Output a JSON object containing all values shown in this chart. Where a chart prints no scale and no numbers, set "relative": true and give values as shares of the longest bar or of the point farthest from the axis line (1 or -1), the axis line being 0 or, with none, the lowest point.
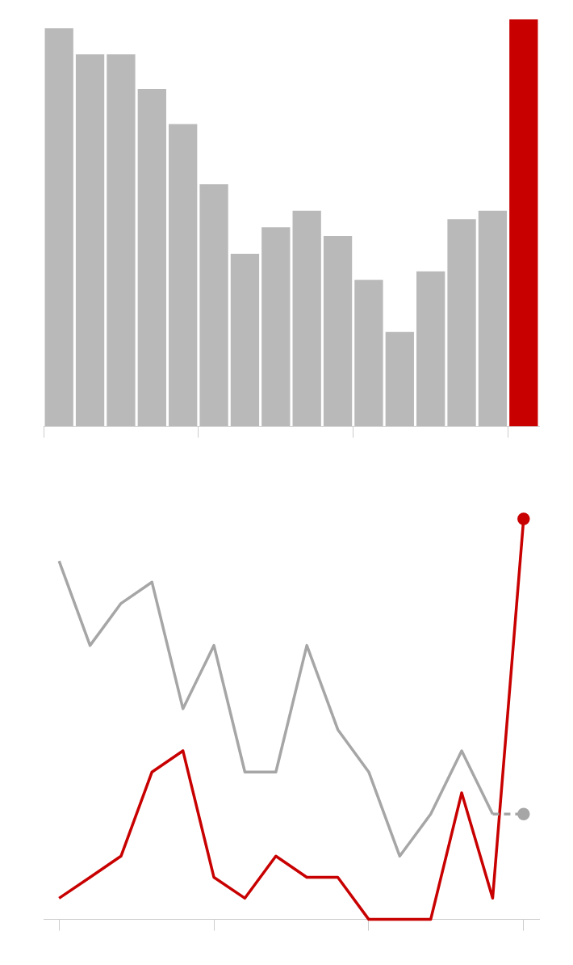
{
  "chart_data": [
    {
      "type": "bar",
      "relative": true,
      "categories": [
        null,
        null,
        null,
        null,
        null,
        null,
        null,
        null,
        null,
        null,
        null,
        null,
        null,
        null,
        null,
        null
      ],
      "values": [
        0.978,
        0.914,
        0.914,
        0.829,
        0.743,
        0.595,
        0.424,
        0.489,
        0.53,
        0.468,
        0.36,
        0.232,
        0.381,
        0.509,
        0.53,
        1
      ],
      "colors": [
        "#b9b9b9",
        "#b9b9b9",
        "#b9b9b9",
        "#b9b9b9",
        "#b9b9b9",
        "#b9b9b9",
        "#b9b9b9",
        "#b9b9b9",
        "#b9b9b9",
        "#b9b9b9",
        "#b9b9b9",
        "#b9b9b9",
        "#b9b9b9",
        "#b9b9b9",
        "#b9b9b9",
        "#c80000"
      ],
      "grid": false,
      "legend": false
    },
    {
      "type": "line",
      "relative": true,
      "categories": [
        null,
        null,
        null,
        null,
        null,
        null,
        null,
        null,
        null,
        null,
        null,
        null,
        null,
        null,
        null,
        null
      ],
      "series": [
        {
          "color": "#a6a6a6",
          "values": [
            0.895,
            0.684,
            0.789,
            0.842,
            0.526,
            0.684,
            0.368,
            0.368,
            0.684,
            0.474,
            0.368,
            0.158,
            0.263,
            0.421,
            0.263,
            null
          ]
        },
        {
          "color": "#a6a6a6",
          "line_style": "dashed",
          "values": [
            null,
            null,
            null,
            null,
            null,
            null,
            null,
            null,
            null,
            null,
            null,
            null,
            null,
            null,
            0.263,
            0.263
          ]
        },
        {
          "type": "scatter",
          "color": "#a6a6a6",
          "values": [
            null,
            null,
            null,
            null,
            null,
            null,
            null,
            null,
            null,
            null,
            null,
            null,
            null,
            null,
            null,
            0.263
          ]
        },
        {
          "color": "#c80000",
          "values": [
            0.053,
            0.105,
            0.158,
            0.368,
            0.421,
            0.105,
            0.053,
            0.158,
            0.105,
            0.105,
            0,
            0,
            0,
            0.316,
            0.053,
            1
          ]
        },
        {
          "type": "scatter",
          "color": "#c80000",
          "values": [
            null,
            null,
            null,
            null,
            null,
            null,
            null,
            null,
            null,
            null,
            null,
            null,
            null,
            null,
            null,
            1
          ]
        }
      ],
      "grid": false,
      "legend": false,
      "line_style": "solid"
    }
  ]
}
